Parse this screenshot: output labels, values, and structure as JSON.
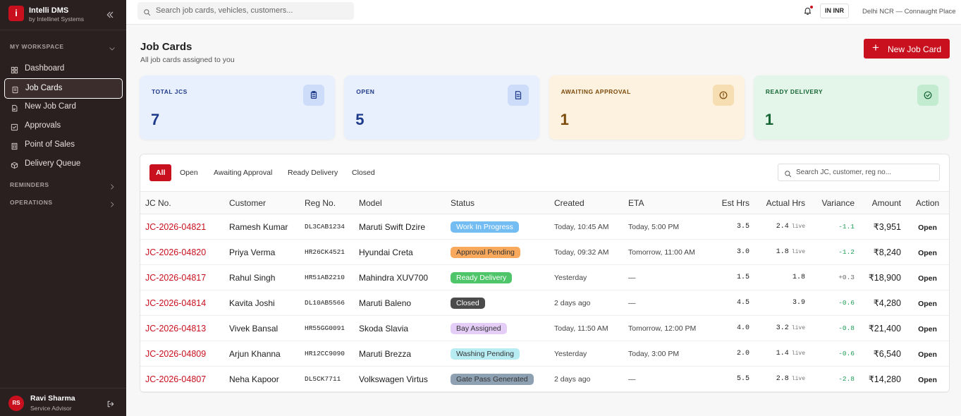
{
  "sidebar": {
    "brand": {
      "logo": "i",
      "name": "Intelli DMS",
      "sub": "by Intellinet Systems"
    },
    "sections": [
      {
        "title": "MY WORKSPACE",
        "items": [
          "Dashboard",
          "Job Cards",
          "New Job Card",
          "Approvals",
          "Point of Sales",
          "Delivery Queue"
        ],
        "active": 1
      },
      {
        "title": "REMINDERS"
      },
      {
        "title": "OPERATIONS"
      }
    ],
    "user": {
      "initials": "RS",
      "name": "Ravi Sharma",
      "role": "Service Advisor"
    }
  },
  "topbar": {
    "search": "Search job cards, vehicles, customers...",
    "currency": "IN INR",
    "location": "Delhi NCR — Connaught Place"
  },
  "header": {
    "title": "Job Cards",
    "subtitle": "All job cards assigned to you",
    "button": "New Job Card"
  },
  "stats": [
    {
      "label": "TOTAL JCS",
      "value": 7,
      "bg": "#e9f0fd",
      "accent": "#1e3a8a",
      "icon_bg": "#cddcf8"
    },
    {
      "label": "OPEN",
      "value": 5,
      "bg": "#e9f0fd",
      "accent": "#1e3a8a",
      "icon_bg": "#cddcf8"
    },
    {
      "label": "AWAITING APPROVAL",
      "value": 1,
      "bg": "#fdf2df",
      "accent": "#7c4a0b",
      "icon_bg": "#f6ddb2"
    },
    {
      "label": "READY DELIVERY",
      "value": 1,
      "bg": "#e4f6ea",
      "accent": "#166534",
      "icon_bg": "#c3ebd0"
    }
  ],
  "filters": {
    "tabs": [
      "All",
      "Open",
      "Awaiting Approval",
      "Ready Delivery",
      "Closed"
    ],
    "active": 0,
    "search": "Search JC, customer, reg no..."
  },
  "table": {
    "columns": [
      "JC No.",
      "Customer",
      "Reg No.",
      "Model",
      "Status",
      "Created",
      "ETA",
      "Est Hrs",
      "Actual Hrs",
      "Variance",
      "Amount",
      "Action"
    ],
    "rows": [
      {
        "jc": "JC-2026-04821",
        "customer": "Ramesh Kumar",
        "reg": "DL3CAB1234",
        "model": "Maruti Swift Dzire",
        "status": "Work In Progress",
        "status_color": "#74bdf2",
        "created": "Today, 10:45 AM",
        "eta": "Today, 5:00 PM",
        "est": "3.5",
        "actual": "2.4",
        "live": "live",
        "variance": "-1.1",
        "amount": "₹3,951",
        "action": "Open"
      },
      {
        "jc": "JC-2026-04820",
        "customer": "Priya Verma",
        "reg": "HR26CK4521",
        "model": "Hyundai Creta",
        "status": "Approval Pending",
        "status_color": "#f8a95c",
        "created": "Today, 09:32 AM",
        "eta": "Tomorrow, 11:00 AM",
        "est": "3.0",
        "actual": "1.8",
        "live": "live",
        "variance": "-1.2",
        "amount": "₹8,240",
        "action": "Open"
      },
      {
        "jc": "JC-2026-04817",
        "customer": "Rahul Singh",
        "reg": "HR51AB2210",
        "model": "Mahindra XUV700",
        "status": "Ready Delivery",
        "status_color": "#4fc56a",
        "created": "Yesterday",
        "eta": "—",
        "est": "1.5",
        "actual": "1.8",
        "variance": "+0.3",
        "amount": "₹18,900",
        "action": "Open"
      },
      {
        "jc": "JC-2026-04814",
        "customer": "Kavita Joshi",
        "reg": "DL10AB5566",
        "model": "Maruti Baleno",
        "status": "Closed",
        "status_color": "#4b4b4b",
        "created": "2 days ago",
        "eta": "—",
        "est": "4.5",
        "actual": "3.9",
        "variance": "-0.6",
        "amount": "₹4,280",
        "action": "Open"
      },
      {
        "jc": "JC-2026-04813",
        "customer": "Vivek Bansal",
        "reg": "HR55GG0091",
        "model": "Skoda Slavia",
        "status": "Bay Assigned",
        "status_color": "#e4cdf7",
        "created": "Today, 11:50 AM",
        "eta": "Tomorrow, 12:00 PM",
        "est": "4.0",
        "actual": "3.2",
        "live": "live",
        "variance": "-0.8",
        "amount": "₹21,400",
        "action": "Open"
      },
      {
        "jc": "JC-2026-04809",
        "customer": "Arjun Khanna",
        "reg": "HR12CC9090",
        "model": "Maruti Brezza",
        "status": "Washing Pending",
        "status_color": "#b7ecf2",
        "created": "Yesterday",
        "eta": "Today, 3:00 PM",
        "est": "2.0",
        "actual": "1.4",
        "live": "live",
        "variance": "-0.6",
        "amount": "₹6,540",
        "action": "Open"
      },
      {
        "jc": "JC-2026-04807",
        "customer": "Neha Kapoor",
        "reg": "DL5CK7711",
        "model": "Volkswagen Virtus",
        "status": "Gate Pass Generated",
        "status_color": "#8ea1b3",
        "created": "2 days ago",
        "eta": "—",
        "est": "5.5",
        "actual": "2.8",
        "live": "live",
        "variance": "-2.8",
        "amount": "₹14,280",
        "action": "Open"
      }
    ]
  }
}
